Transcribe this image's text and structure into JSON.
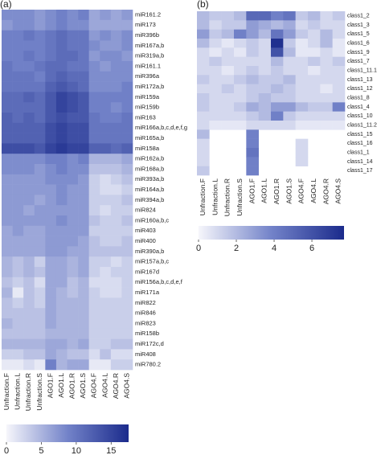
{
  "chart_data": [
    {
      "type": "heatmap",
      "panel_label": "(a)",
      "columns": [
        "Unfraction.F",
        "Unfraction.L",
        "Unfraction.R",
        "Unfraction.S",
        "AGO1.F",
        "AGO1.L",
        "AGO1.R",
        "AGO1.S",
        "AGO4.F",
        "AGO4.L",
        "AGO4.R",
        "AGO4.S"
      ],
      "rows": [
        "miR161.2",
        "miR173",
        "miR396b",
        "miR167a,b",
        "miR319a,b",
        "miR161.1",
        "miR396a",
        "miR172a,b",
        "miR159a",
        "miR159b",
        "miR163",
        "miR166a,b,c,d,e,f,g",
        "miR165a,b",
        "miR158a",
        "miR162a,b",
        "miR168a,b",
        "miR393a,b",
        "miR164a,b",
        "miR394a,b",
        "miR824",
        "miR160a,b,c",
        "miR403",
        "miR400",
        "miR390a,b",
        "miR157a,b,c",
        "miR167d",
        "miR156a,b,c,d,e,f",
        "miR171a",
        "miR822",
        "miR846",
        "miR823",
        "miR158b",
        "miR172c,d",
        "miR408",
        "miR780.2"
      ],
      "values": [
        [
          8,
          8,
          8,
          7,
          8,
          9,
          8,
          9,
          6,
          7,
          6,
          7
        ],
        [
          7,
          8,
          8,
          7,
          8,
          9,
          8,
          8,
          6,
          6,
          6,
          6
        ],
        [
          9,
          9,
          10,
          9,
          10,
          11,
          10,
          10,
          7,
          8,
          7,
          8
        ],
        [
          9,
          9,
          9,
          9,
          10,
          11,
          10,
          10,
          8,
          7,
          7,
          8
        ],
        [
          9,
          9,
          10,
          9,
          10,
          11,
          11,
          10,
          7,
          8,
          8,
          7
        ],
        [
          10,
          9,
          9,
          10,
          11,
          11,
          10,
          10,
          8,
          7,
          8,
          8
        ],
        [
          10,
          10,
          10,
          9,
          11,
          12,
          11,
          11,
          8,
          8,
          8,
          8
        ],
        [
          10,
          10,
          10,
          10,
          12,
          13,
          12,
          11,
          8,
          8,
          8,
          9
        ],
        [
          11,
          11,
          12,
          11,
          13,
          15,
          14,
          13,
          9,
          9,
          9,
          9
        ],
        [
          11,
          11,
          11,
          11,
          13,
          15,
          14,
          13,
          9,
          9,
          8,
          9
        ],
        [
          12,
          11,
          12,
          11,
          13,
          14,
          13,
          13,
          10,
          9,
          9,
          10
        ],
        [
          12,
          12,
          12,
          12,
          14,
          15,
          14,
          14,
          10,
          10,
          10,
          10
        ],
        [
          12,
          12,
          12,
          12,
          14,
          15,
          14,
          14,
          10,
          10,
          10,
          10
        ],
        [
          14,
          14,
          14,
          13,
          15,
          16,
          15,
          15,
          12,
          12,
          11,
          12
        ],
        [
          8,
          8,
          8,
          8,
          9,
          9,
          8,
          9,
          5,
          5,
          5,
          6
        ],
        [
          8,
          8,
          8,
          7,
          8,
          9,
          8,
          8,
          4,
          4,
          4,
          5
        ],
        [
          7,
          7,
          7,
          7,
          8,
          8,
          8,
          7,
          3,
          2,
          3,
          4
        ],
        [
          7,
          7,
          7,
          7,
          7,
          8,
          7,
          7,
          3,
          2,
          2,
          3
        ],
        [
          7,
          7,
          7,
          6,
          7,
          8,
          7,
          7,
          3,
          3,
          3,
          4
        ],
        [
          7,
          7,
          6,
          7,
          7,
          7,
          7,
          7,
          3,
          2,
          3,
          3
        ],
        [
          7,
          7,
          7,
          7,
          7,
          8,
          7,
          7,
          4,
          3,
          3,
          4
        ],
        [
          6,
          7,
          6,
          6,
          7,
          7,
          7,
          7,
          3,
          3,
          3,
          3
        ],
        [
          6,
          6,
          6,
          6,
          7,
          7,
          7,
          6,
          4,
          3,
          3,
          4
        ],
        [
          6,
          6,
          6,
          6,
          7,
          7,
          6,
          6,
          4,
          4,
          4,
          4
        ],
        [
          5,
          4,
          5,
          3,
          6,
          6,
          5,
          6,
          3,
          3,
          2,
          3
        ],
        [
          5,
          4,
          5,
          4,
          6,
          6,
          5,
          6,
          3,
          2,
          3,
          3
        ],
        [
          4,
          3,
          4,
          2,
          6,
          6,
          4,
          5,
          2,
          2,
          2,
          3
        ],
        [
          5,
          1,
          4,
          3,
          6,
          5,
          4,
          5,
          3,
          2,
          2,
          3
        ],
        [
          4,
          3,
          4,
          3,
          6,
          5,
          5,
          5,
          3,
          3,
          3,
          3
        ],
        [
          4,
          4,
          4,
          4,
          6,
          5,
          5,
          5,
          3,
          3,
          3,
          3
        ],
        [
          5,
          4,
          4,
          4,
          6,
          5,
          5,
          5,
          3,
          3,
          3,
          3
        ],
        [
          4,
          4,
          4,
          4,
          5,
          5,
          5,
          5,
          3,
          3,
          3,
          3
        ],
        [
          5,
          5,
          5,
          5,
          6,
          6,
          5,
          6,
          3,
          3,
          4,
          4
        ],
        [
          3,
          3,
          4,
          4,
          6,
          5,
          4,
          4,
          2,
          4,
          2,
          2
        ],
        [
          1,
          1,
          2,
          1,
          9,
          5,
          6,
          6,
          1,
          1,
          3,
          3
        ]
      ],
      "colors": [
        "#f6f6fb",
        "#7383c9",
        "#1b2b8c"
      ],
      "clim": [
        0,
        17.5
      ],
      "cticks": [
        0,
        5,
        10,
        15
      ]
    },
    {
      "type": "heatmap",
      "panel_label": "(b)",
      "columns": [
        "Unfraction.F",
        "Unfraction.L",
        "Unfraction.R",
        "Unfraction.S",
        "AGO1.F",
        "AGO1.L",
        "AGO1.R",
        "AGO1.S",
        "AGO4.F",
        "AGO4.L",
        "AGO4.R",
        "AGO4.S"
      ],
      "rows": [
        "class1_2",
        "class1_3",
        "class1_5",
        "class1_6",
        "class1_9",
        "class1_7",
        "class1_11.1",
        "class1_13",
        "class1_12",
        "class1_8",
        "class1_4",
        "class1_10",
        "class1_11.2",
        "class1_15",
        "class1_16",
        "class1_1",
        "class1_14",
        "class1_17"
      ],
      "values": [
        [
          2,
          1.5,
          1.5,
          2,
          5,
          5,
          4,
          4.5,
          1.5,
          2,
          1,
          1.5
        ],
        [
          2,
          1,
          1.5,
          1.5,
          3,
          2.5,
          2,
          2.5,
          1,
          1.5,
          1,
          1
        ],
        [
          3,
          1.5,
          2,
          4,
          3,
          2,
          4.5,
          3,
          1.5,
          1,
          2,
          1
        ],
        [
          2,
          1,
          0.5,
          1,
          1.5,
          1,
          7.5,
          1.5,
          0.5,
          1,
          2,
          0.5
        ],
        [
          1,
          0.5,
          1,
          0.5,
          1.5,
          1,
          6,
          2,
          0.5,
          0.5,
          1,
          0.5
        ],
        [
          1,
          1.5,
          1,
          1,
          1,
          1,
          2,
          1,
          1,
          1.5,
          1,
          1.5
        ],
        [
          1,
          1,
          0.5,
          1,
          1.5,
          1,
          1.5,
          1,
          1,
          0.5,
          1,
          1
        ],
        [
          1.5,
          1,
          1,
          1.5,
          2,
          1.5,
          1.5,
          2,
          1,
          1,
          1,
          1
        ],
        [
          1,
          1,
          1.5,
          1,
          1.5,
          1.5,
          2,
          1.5,
          1,
          1,
          0.5,
          1
        ],
        [
          1.5,
          1,
          1,
          1,
          1.5,
          2,
          1.5,
          1.5,
          1,
          1,
          1,
          1
        ],
        [
          1.5,
          1,
          1,
          1.5,
          2.5,
          2,
          3,
          3,
          2,
          1.5,
          1.5,
          4
        ],
        [
          1,
          1,
          1,
          1,
          1.5,
          2,
          4,
          1.5,
          1,
          1,
          1,
          1
        ],
        [
          1,
          0.5,
          0.5,
          0.5,
          1,
          1,
          1,
          1,
          0.5,
          0.5,
          0.5,
          0.5
        ],
        [
          2,
          null,
          null,
          null,
          4,
          null,
          null,
          null,
          null,
          null,
          null,
          null
        ],
        [
          1,
          null,
          null,
          null,
          4,
          null,
          null,
          null,
          1,
          null,
          null,
          null
        ],
        [
          1,
          null,
          null,
          null,
          4.5,
          null,
          null,
          null,
          1,
          null,
          null,
          null
        ],
        [
          1,
          null,
          null,
          null,
          4,
          null,
          null,
          null,
          1,
          null,
          null,
          null
        ],
        [
          1.5,
          null,
          null,
          null,
          4,
          null,
          null,
          null,
          null,
          null,
          null,
          null
        ]
      ],
      "colors": [
        "#f6f6fb",
        "#7383c9",
        "#1b2b8c"
      ],
      "clim": [
        0,
        7.7
      ],
      "cticks": [
        0,
        2,
        4,
        6
      ]
    }
  ]
}
